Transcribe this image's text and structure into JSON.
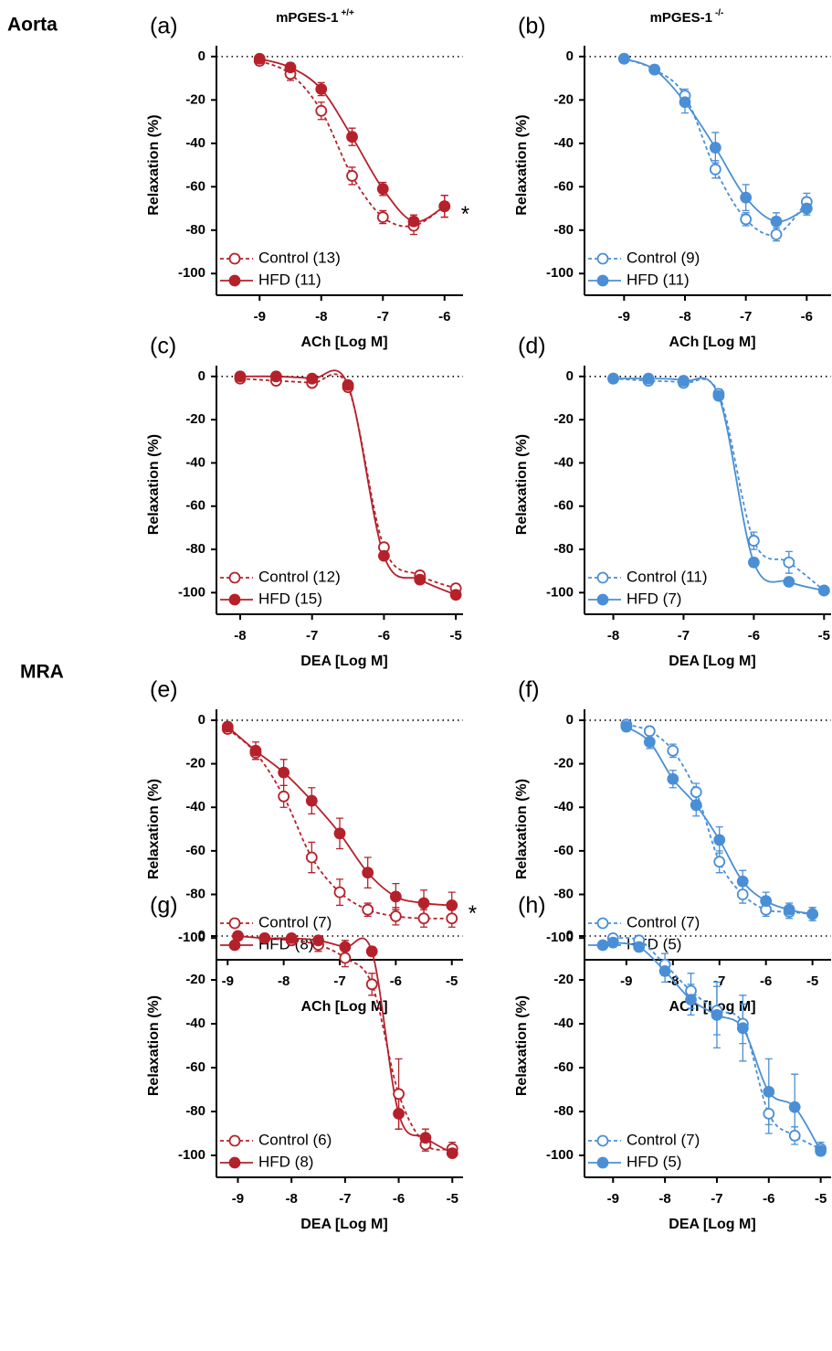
{
  "figure": {
    "row_labels": [
      "Aorta",
      "MRA"
    ],
    "column_titles": [
      {
        "text": "mPGES-1",
        "sup": "+/+"
      },
      {
        "text": "mPGES-1",
        "sup": "-/-"
      }
    ]
  },
  "chart_data": [
    {
      "type": "line",
      "label": "(a)",
      "xlabel": "ACh [Log M]",
      "ylabel": "Relaxation (%)",
      "zero_line": true,
      "annotation": "*",
      "x": [
        -9,
        -8.5,
        -8,
        -7.5,
        -7,
        -6.5,
        -6
      ],
      "xlim": [
        -9.7,
        -5.7
      ],
      "xticks": [
        -9,
        -8,
        -7,
        -6
      ],
      "ylim": [
        -110,
        5
      ],
      "yticks": [
        0,
        -20,
        -40,
        -60,
        -80,
        -100
      ],
      "series": [
        {
          "name": "Control (13)",
          "color": "#b5212b",
          "marker": "open",
          "dash": true,
          "values": [
            -2,
            -8,
            -25,
            -55,
            -74,
            -78,
            -69
          ],
          "errors": [
            2,
            3,
            4,
            4,
            3,
            4,
            5
          ]
        },
        {
          "name": "HFD (11)",
          "color": "#b5212b",
          "marker": "filled",
          "dash": false,
          "values": [
            -1,
            -5,
            -15,
            -37,
            -61,
            -76,
            -69
          ],
          "errors": [
            1,
            2,
            3,
            4,
            3,
            3,
            5
          ]
        }
      ]
    },
    {
      "type": "line",
      "label": "(b)",
      "xlabel": "ACh [Log M]",
      "ylabel": "Relaxation (%)",
      "zero_line": true,
      "x": [
        -9,
        -8.5,
        -8,
        -7.5,
        -7,
        -6.5,
        -6
      ],
      "xlim": [
        -9.65,
        -5.6
      ],
      "xticks": [
        -9,
        -8,
        -7,
        -6
      ],
      "ylim": [
        -110,
        5
      ],
      "yticks": [
        0,
        -20,
        -40,
        -60,
        -80,
        -100
      ],
      "series": [
        {
          "name": "Control (9)",
          "color": "#4a8fd6",
          "marker": "open",
          "dash": true,
          "values": [
            -1,
            -6,
            -18,
            -52,
            -75,
            -82,
            -67
          ],
          "errors": [
            1,
            2,
            3,
            4,
            3,
            3,
            4
          ]
        },
        {
          "name": "HFD (11)",
          "color": "#4a8fd6",
          "marker": "filled",
          "dash": false,
          "values": [
            -1,
            -6,
            -21,
            -42,
            -65,
            -76,
            -70
          ],
          "errors": [
            1,
            2,
            5,
            7,
            6,
            4,
            3
          ]
        }
      ]
    },
    {
      "type": "line",
      "label": "(c)",
      "xlabel": "DEA [Log M]",
      "ylabel": "Relaxation (%)",
      "zero_line": true,
      "x": [
        -8,
        -7.5,
        -7,
        -6.5,
        -6,
        -5.5,
        -5
      ],
      "xlim": [
        -8.33,
        -4.9
      ],
      "xticks": [
        -8,
        -7,
        -6,
        -5
      ],
      "ylim": [
        -110,
        5
      ],
      "yticks": [
        0,
        -20,
        -40,
        -60,
        -80,
        -100
      ],
      "series": [
        {
          "name": "Control (12)",
          "color": "#b5212b",
          "marker": "open",
          "dash": true,
          "values": [
            -1,
            -2,
            -3,
            -5,
            -79,
            -92,
            -98
          ],
          "errors": [
            1,
            1,
            1,
            2,
            2,
            2,
            2
          ]
        },
        {
          "name": "HFD (15)",
          "color": "#b5212b",
          "marker": "filled",
          "dash": false,
          "values": [
            0,
            0,
            -1,
            -4,
            -83,
            -94,
            -101
          ],
          "errors": [
            1,
            1,
            1,
            2,
            2,
            2,
            1
          ]
        }
      ]
    },
    {
      "type": "line",
      "label": "(d)",
      "xlabel": "DEA [Log M]",
      "ylabel": "Relaxation (%)",
      "zero_line": true,
      "x": [
        -8,
        -7.5,
        -7,
        -6.5,
        -6,
        -5.5,
        -5
      ],
      "xlim": [
        -8.41,
        -4.9
      ],
      "xticks": [
        -8,
        -7,
        -6,
        -5
      ],
      "ylim": [
        -110,
        5
      ],
      "yticks": [
        0,
        -20,
        -40,
        -60,
        -80,
        -100
      ],
      "series": [
        {
          "name": "Control (11)",
          "color": "#4a8fd6",
          "marker": "open",
          "dash": true,
          "values": [
            -1,
            -2,
            -3,
            -8,
            -76,
            -86,
            -99
          ],
          "errors": [
            1,
            1,
            1,
            2,
            4,
            5,
            1
          ]
        },
        {
          "name": "HFD (7)",
          "color": "#4a8fd6",
          "marker": "filled",
          "dash": false,
          "values": [
            -1,
            -1,
            -2,
            -9,
            -86,
            -95,
            -99
          ],
          "errors": [
            1,
            1,
            1,
            2,
            2,
            1,
            1
          ]
        }
      ]
    },
    {
      "type": "line",
      "label": "(e)",
      "xlabel": "ACh [Log M]",
      "ylabel": "Relaxation (%)",
      "zero_line": true,
      "annotation": "*",
      "x": [
        -9,
        -8.5,
        -8,
        -7.5,
        -7,
        -6.5,
        -6,
        -5.5,
        -5
      ],
      "xlim": [
        -9.2,
        -4.8
      ],
      "xticks": [
        -9,
        -8,
        -7,
        -6,
        -5
      ],
      "ylim": [
        -110,
        5
      ],
      "yticks": [
        0,
        -20,
        -40,
        -60,
        -80,
        -100
      ],
      "series": [
        {
          "name": "Control (7)",
          "color": "#b5212b",
          "marker": "open",
          "dash": true,
          "values": [
            -4,
            -15,
            -35,
            -63,
            -79,
            -87,
            -90,
            -91,
            -91
          ],
          "errors": [
            2,
            3,
            5,
            7,
            6,
            3,
            4,
            4,
            4
          ]
        },
        {
          "name": "HFD (8)",
          "color": "#b5212b",
          "marker": "filled",
          "dash": false,
          "values": [
            -3,
            -14,
            -24,
            -37,
            -52,
            -70,
            -81,
            -84,
            -85
          ],
          "errors": [
            2,
            4,
            6,
            6,
            7,
            7,
            6,
            6,
            6
          ]
        }
      ]
    },
    {
      "type": "line",
      "label": "(f)",
      "xlabel": "ACh [Log M]",
      "ylabel": "Relaxation (%)",
      "zero_line": true,
      "x": [
        -9,
        -8.5,
        -8,
        -7.5,
        -7,
        -6.5,
        -6,
        -5.5,
        -5
      ],
      "xlim": [
        -9.9,
        -4.6
      ],
      "xticks": [
        -9,
        -8,
        -7,
        -6,
        -5
      ],
      "ylim": [
        -110,
        5
      ],
      "yticks": [
        0,
        -20,
        -40,
        -60,
        -80,
        -100
      ],
      "series": [
        {
          "name": "Control (7)",
          "color": "#4a8fd6",
          "marker": "open",
          "dash": true,
          "values": [
            -2,
            -5,
            -14,
            -33,
            -65,
            -80,
            -87,
            -88,
            -89
          ],
          "errors": [
            1,
            2,
            3,
            4,
            5,
            4,
            3,
            3,
            3
          ]
        },
        {
          "name": "HFD (5)",
          "color": "#4a8fd6",
          "marker": "filled",
          "dash": false,
          "values": [
            -3,
            -10,
            -27,
            -39,
            -55,
            -74,
            -83,
            -87,
            -89
          ],
          "errors": [
            2,
            3,
            4,
            5,
            6,
            5,
            4,
            3,
            3
          ]
        }
      ]
    },
    {
      "type": "line",
      "label": "(g)",
      "xlabel": "DEA [Log M]",
      "ylabel": "Relaxation (%)",
      "zero_line": true,
      "x": [
        -9,
        -8.5,
        -8,
        -7.5,
        -7,
        -6.5,
        -6,
        -5.5,
        -5
      ],
      "xlim": [
        -9.4,
        -4.8
      ],
      "xticks": [
        -9,
        -8,
        -7,
        -6,
        -5
      ],
      "ylim": [
        -110,
        5
      ],
      "yticks": [
        0,
        -20,
        -40,
        -60,
        -80,
        -100
      ],
      "series": [
        {
          "name": "Control (6)",
          "color": "#b5212b",
          "marker": "open",
          "dash": true,
          "values": [
            0,
            -1,
            -2,
            -4,
            -10,
            -22,
            -72,
            -95,
            -97
          ],
          "errors": [
            1,
            1,
            2,
            3,
            4,
            5,
            16,
            3,
            3
          ]
        },
        {
          "name": "HFD (8)",
          "color": "#b5212b",
          "marker": "filled",
          "dash": false,
          "values": [
            0,
            -1,
            -1,
            -2,
            -5,
            -7,
            -81,
            -92,
            -99
          ],
          "errors": [
            1,
            1,
            1,
            2,
            3,
            2,
            7,
            4,
            1
          ]
        }
      ]
    },
    {
      "type": "line",
      "label": "(h)",
      "xlabel": "DEA [Log M]",
      "ylabel": "Relaxation (%)",
      "zero_line": true,
      "x": [
        -9,
        -8.5,
        -8,
        -7.5,
        -7,
        -6.5,
        -6,
        -5.5,
        -5
      ],
      "xlim": [
        -9.55,
        -4.8
      ],
      "xticks": [
        -9,
        -8,
        -7,
        -6,
        -5
      ],
      "ylim": [
        -110,
        5
      ],
      "yticks": [
        0,
        -20,
        -40,
        -60,
        -80,
        -100
      ],
      "series": [
        {
          "name": "Control (7)",
          "color": "#4a8fd6",
          "marker": "open",
          "dash": true,
          "values": [
            -1,
            -2,
            -13,
            -25,
            -34,
            -40,
            -81,
            -91,
            -97
          ],
          "errors": [
            1,
            2,
            5,
            8,
            11,
            9,
            9,
            4,
            3
          ]
        },
        {
          "name": "HFD (5)",
          "color": "#4a8fd6",
          "marker": "filled",
          "dash": false,
          "values": [
            -3,
            -5,
            -16,
            -29,
            -36,
            -42,
            -71,
            -78,
            -98
          ],
          "errors": [
            1,
            2,
            5,
            7,
            15,
            15,
            15,
            15,
            2
          ]
        }
      ]
    }
  ]
}
